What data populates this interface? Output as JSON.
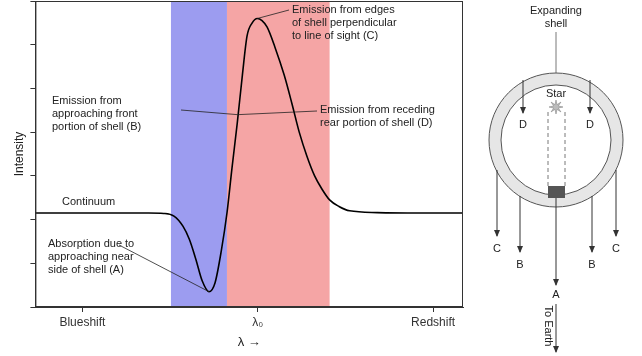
{
  "chart_data": {
    "type": "line",
    "x": [
      0,
      10,
      20,
      26.5,
      30,
      32.4,
      34.5,
      36,
      37.5,
      39,
      40.6,
      42,
      43.5,
      44.8,
      46,
      47.2,
      48.4,
      49.5,
      50.7,
      51.9,
      53,
      54.2,
      56,
      58.2,
      60,
      61.7,
      63.5,
      65.3,
      67,
      68.8,
      71,
      73.5,
      80,
      90,
      100
    ],
    "values": [
      2.15,
      2.15,
      2.15,
      2.15,
      2.14,
      2.08,
      1.85,
      1.55,
      1.1,
      0.6,
      0.35,
      0.55,
      1.3,
      2.15,
      3.2,
      4.2,
      5.3,
      6.2,
      6.5,
      6.6,
      6.55,
      6.4,
      5.95,
      5.3,
      4.65,
      4.0,
      3.45,
      3.0,
      2.7,
      2.45,
      2.3,
      2.2,
      2.16,
      2.15,
      2.15
    ],
    "color": "#000000",
    "xlim": [
      0,
      100
    ],
    "ylim": [
      0,
      7
    ],
    "xticks": [
      {
        "value": 11,
        "label": "Blueshift"
      },
      {
        "value": 52,
        "label": "λ₀"
      },
      {
        "value": 93,
        "label": "Redshift"
      }
    ],
    "yticks": [
      0,
      1,
      2,
      3,
      4,
      5,
      6,
      7
    ],
    "x_label": "λ →",
    "y_label": "Intensity",
    "tick_labels": "x",
    "grid": false,
    "shaded_ranges": [
      {
        "from": 31.7,
        "to": 44.8,
        "color": "#9c9cf0"
      },
      {
        "from": 44.8,
        "to": 68.8,
        "color": "#f5a5a5"
      }
    ],
    "annotations": [
      {
        "text": [
          "Continuum"
        ]
      },
      {
        "text": [
          "Emission from edges",
          "of shell perpendicular",
          "to line of sight (C)"
        ],
        "points_to": [
          51.9,
          6.6
        ]
      },
      {
        "text": [
          "Emission from",
          "approaching front",
          "portion of shell (B)"
        ],
        "points_to": [
          47.3,
          4.4
        ]
      },
      {
        "text": [
          "Emission from receding",
          "rear portion of shell (D)"
        ],
        "points_to": [
          47.3,
          4.4
        ]
      },
      {
        "text": [
          "Absorption due to",
          "approaching near",
          "side of shell (A)"
        ],
        "points_to": [
          40.6,
          0.35
        ]
      }
    ]
  },
  "diagram": {
    "title": [
      "Expanding",
      "shell"
    ],
    "star": "Star",
    "labels": [
      "D",
      "D",
      "C",
      "C",
      "B",
      "B",
      "A"
    ],
    "earth": "To Earth"
  }
}
